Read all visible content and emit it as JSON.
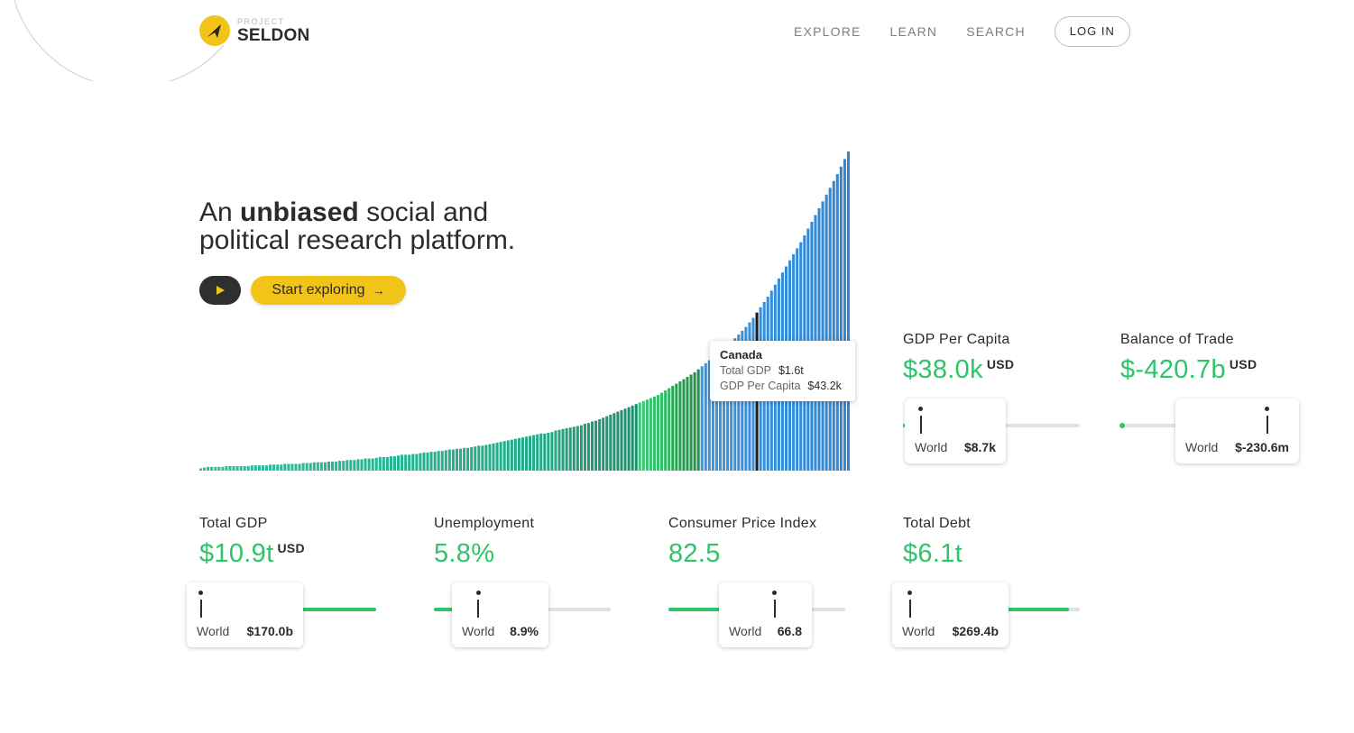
{
  "header": {
    "logo_small": "PROJECT",
    "logo_big": "SELDON",
    "nav": [
      "EXPLORE",
      "LEARN",
      "SEARCH"
    ],
    "login": "LOG IN"
  },
  "hero": {
    "line1_pre": "An ",
    "line1_bold": "unbiased",
    "line1_post": " social and",
    "line2": "political research platform.",
    "cta": "Start exploring",
    "cta_arrow": "→"
  },
  "tooltip": {
    "country": "Canada",
    "row1_label": "Total GDP",
    "row1_value": "$1.6t",
    "row2_label": "GDP Per Capita",
    "row2_value": "$43.2k"
  },
  "chart_data": {
    "type": "bar",
    "title": "",
    "xlabel": "",
    "ylabel": "",
    "bar_count": 178,
    "highlighted_category": "Canada",
    "highlighted_index": 152,
    "values": [
      3,
      4,
      5,
      5,
      5,
      5,
      5,
      6,
      6,
      6,
      6,
      6,
      6,
      6,
      7,
      7,
      7,
      7,
      7,
      8,
      8,
      8,
      8,
      9,
      9,
      9,
      9,
      9,
      10,
      10,
      10,
      11,
      11,
      11,
      11,
      12,
      12,
      12,
      13,
      13,
      14,
      14,
      14,
      15,
      15,
      16,
      16,
      16,
      17,
      18,
      18,
      18,
      19,
      19,
      20,
      21,
      21,
      21,
      22,
      22,
      23,
      24,
      24,
      25,
      25,
      26,
      26,
      27,
      28,
      28,
      29,
      29,
      30,
      30,
      31,
      32,
      33,
      33,
      34,
      35,
      36,
      37,
      38,
      39,
      40,
      41,
      42,
      43,
      44,
      45,
      46,
      47,
      48,
      49,
      49,
      50,
      51,
      53,
      54,
      55,
      56,
      57,
      58,
      59,
      60,
      62,
      63,
      65,
      66,
      68,
      70,
      72,
      74,
      76,
      78,
      80,
      82,
      84,
      86,
      88,
      90,
      92,
      94,
      96,
      98,
      100,
      103,
      106,
      109,
      112,
      115,
      118,
      121,
      124,
      127,
      130,
      134,
      138,
      142,
      146,
      150,
      154,
      158,
      162,
      166,
      170,
      175,
      180,
      185,
      190,
      196,
      202,
      209,
      216,
      223,
      230,
      238,
      246,
      254,
      262,
      270,
      278,
      286,
      294,
      302,
      311,
      320,
      329,
      338,
      347,
      356,
      365,
      374,
      383,
      392,
      402,
      412,
      422
    ],
    "segments": [
      {
        "from": 0,
        "to": 98,
        "color_start": "#2bc19c",
        "color_end": "#24a886"
      },
      {
        "from": 99,
        "to": 119,
        "color_start": "#23a07e",
        "color_end": "#1f8f6e"
      },
      {
        "from": 120,
        "to": 128,
        "color_start": "#3ec77a",
        "color_end": "#2eb860"
      },
      {
        "from": 129,
        "to": 136,
        "color_start": "#2aa457",
        "color_end": "#248f4a"
      },
      {
        "from": 137,
        "to": 177,
        "color_start": "#3b95e0",
        "color_end": "#2f86d4"
      }
    ],
    "highlight_color": "#1a1a1a"
  },
  "stats": [
    {
      "id": "gdp-per-capita",
      "label": "GDP Per Capita",
      "value": "$38.0k",
      "unit": "USD",
      "fill_fraction": 0.42,
      "world_label": "World",
      "world_value": "$8.7k",
      "marker_fraction": 0.1
    },
    {
      "id": "balance-of-trade",
      "label": "Balance of Trade",
      "value": "$-420.7b",
      "unit": "USD",
      "fill_fraction": 0.0,
      "world_label": "World",
      "world_value": "$-230.6m",
      "marker_fraction": 0.83
    },
    {
      "id": "total-gdp",
      "label": "Total GDP",
      "value": "$10.9t",
      "unit": "USD",
      "fill_fraction": 1.0,
      "world_label": "World",
      "world_value": "$170.0b",
      "marker_fraction": 0.01
    },
    {
      "id": "unemployment",
      "label": "Unemployment",
      "value": "5.8%",
      "unit": "",
      "fill_fraction": 0.16,
      "world_label": "World",
      "world_value": "8.9%",
      "marker_fraction": 0.25
    },
    {
      "id": "consumer-price-index",
      "label": "Consumer Price Index",
      "value": "82.5",
      "unit": "",
      "fill_fraction": 0.79,
      "world_label": "World",
      "world_value": "66.8",
      "marker_fraction": 0.6
    },
    {
      "id": "total-debt",
      "label": "Total Debt",
      "value": "$6.1t",
      "unit": "",
      "fill_fraction": 0.94,
      "world_label": "World",
      "world_value": "$269.4b",
      "marker_fraction": 0.04
    }
  ],
  "colors": {
    "accent_yellow": "#f2c418",
    "positive_green": "#2ec46a",
    "dark": "#2b2b2b"
  }
}
